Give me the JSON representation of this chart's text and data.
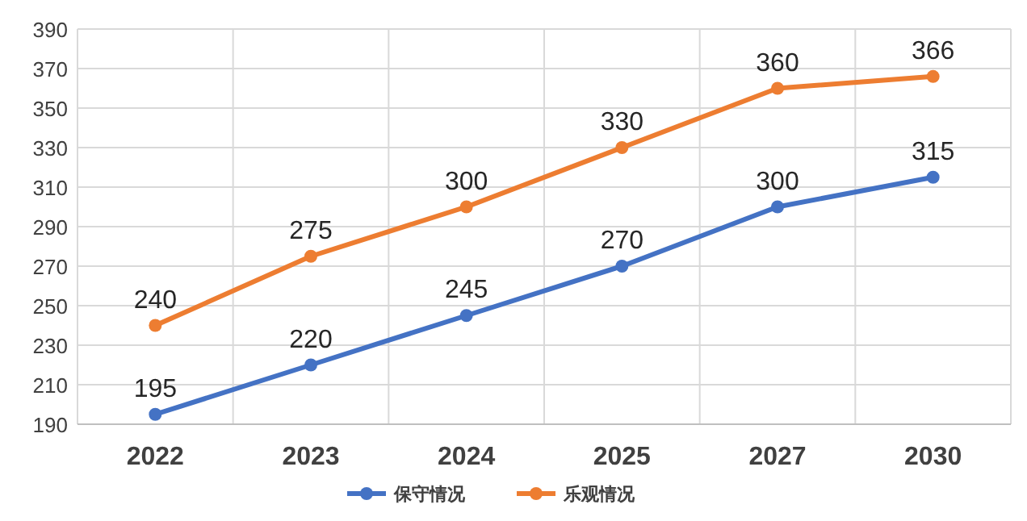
{
  "chart_data": {
    "type": "line",
    "categories": [
      "2022",
      "2023",
      "2024",
      "2025",
      "2027",
      "2030"
    ],
    "series": [
      {
        "name": "保守情况",
        "color": "#4472c4",
        "values": [
          195,
          220,
          245,
          270,
          300,
          315
        ]
      },
      {
        "name": "乐观情况",
        "color": "#ed7d31",
        "values": [
          240,
          275,
          300,
          330,
          360,
          366
        ]
      }
    ],
    "ylim": [
      190,
      390
    ],
    "yticks": [
      190,
      210,
      230,
      250,
      270,
      290,
      310,
      330,
      350,
      370,
      390
    ],
    "grid": true,
    "legend": "bottom",
    "marker": "circle",
    "data_labels": true
  }
}
